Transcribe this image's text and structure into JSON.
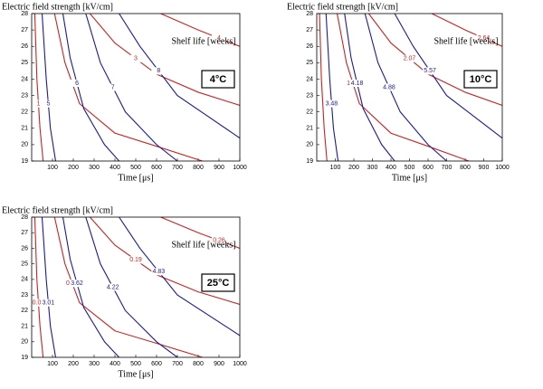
{
  "chart_data": [
    {
      "type": "contour",
      "title": "Electric field strength [kV/cm]",
      "x_label": "Time [μs]",
      "annotation": "Shelf life [weeks]",
      "panel_label": "4°C",
      "xlim": [
        0,
        1000
      ],
      "ylim": [
        19,
        28
      ],
      "xticks": [
        100,
        200,
        300,
        400,
        500,
        600,
        700,
        800,
        900,
        1000
      ],
      "yticks": [
        19,
        20,
        21,
        22,
        23,
        24,
        25,
        26,
        27,
        28
      ],
      "contours": [
        {
          "level": 1,
          "color": "#cc2222",
          "x": [
            15,
            25,
            40,
            55
          ],
          "y": [
            28,
            24,
            21,
            19
          ]
        },
        {
          "level": 2,
          "color": "#cc2222",
          "x": [
            110,
            160,
            230,
            400,
            600,
            820
          ],
          "y": [
            28,
            25,
            22.5,
            20.7,
            19.9,
            19
          ]
        },
        {
          "level": 3,
          "color": "#cc2222",
          "x": [
            280,
            400,
            600,
            800,
            1000
          ],
          "y": [
            28,
            26.2,
            24.3,
            23.2,
            22.4
          ]
        },
        {
          "level": 4,
          "color": "#cc2222",
          "x": [
            620,
            800,
            1000
          ],
          "y": [
            28,
            27,
            26
          ]
        },
        {
          "level": 5,
          "color": "#1a1a9a",
          "x": [
            50,
            70,
            90,
            115
          ],
          "y": [
            28,
            24,
            21,
            19
          ]
        },
        {
          "level": 6,
          "color": "#1a1a9a",
          "x": [
            150,
            185,
            250,
            350,
            420
          ],
          "y": [
            28,
            25.3,
            22.2,
            20,
            19
          ]
        },
        {
          "level": 7,
          "color": "#1a1a9a",
          "x": [
            260,
            330,
            450,
            600,
            700
          ],
          "y": [
            28,
            25,
            22,
            20,
            19
          ]
        },
        {
          "level": 8,
          "color": "#1a1a9a",
          "x": [
            420,
            520,
            700,
            1000
          ],
          "y": [
            28,
            26,
            23,
            20.4
          ]
        }
      ]
    },
    {
      "type": "contour",
      "title": "Electric field strength [kV/cm]",
      "x_label": "Time [μs]",
      "annotation": "Shelf life [weeks]",
      "panel_label": "10°C",
      "xlim": [
        0,
        1000
      ],
      "ylim": [
        19,
        28
      ],
      "xticks": [
        100,
        200,
        300,
        400,
        500,
        600,
        700,
        800,
        900,
        1000
      ],
      "yticks": [
        19,
        20,
        21,
        22,
        23,
        24,
        25,
        26,
        27,
        28
      ],
      "contours": [
        {
          "level": null,
          "color": "#cc2222",
          "x": [
            15,
            25,
            40,
            55
          ],
          "y": [
            28,
            24,
            21,
            19
          ]
        },
        {
          "level": 1.57,
          "color": "#cc2222",
          "x": [
            110,
            160,
            230,
            400,
            600,
            820
          ],
          "y": [
            28,
            25,
            22.5,
            20.7,
            19.9,
            19
          ]
        },
        {
          "level": 2.07,
          "color": "#cc2222",
          "x": [
            280,
            400,
            600,
            800,
            1000
          ],
          "y": [
            28,
            26.2,
            24.3,
            23.2,
            22.4
          ]
        },
        {
          "level": 2.64,
          "color": "#cc2222",
          "x": [
            620,
            800,
            1000
          ],
          "y": [
            28,
            27,
            26
          ]
        },
        {
          "level": 3.48,
          "color": "#1a1a9a",
          "x": [
            50,
            70,
            90,
            115
          ],
          "y": [
            28,
            24,
            21,
            19
          ]
        },
        {
          "level": 4.18,
          "color": "#1a1a9a",
          "x": [
            150,
            185,
            250,
            350,
            420
          ],
          "y": [
            28,
            25.3,
            22.2,
            20,
            19
          ]
        },
        {
          "level": 4.88,
          "color": "#1a1a9a",
          "x": [
            260,
            330,
            450,
            600,
            700
          ],
          "y": [
            28,
            25,
            22,
            20,
            19
          ]
        },
        {
          "level": 5.57,
          "color": "#1a1a9a",
          "x": [
            420,
            520,
            700,
            1000
          ],
          "y": [
            28,
            26,
            23,
            20.4
          ]
        }
      ]
    },
    {
      "type": "contour",
      "title": "Electric field strength [kV/cm]",
      "x_label": "Time [μs]",
      "annotation": "Shelf life [weeks]",
      "panel_label": "25°C",
      "xlim": [
        0,
        1000
      ],
      "ylim": [
        19,
        28
      ],
      "xticks": [
        100,
        200,
        300,
        400,
        500,
        600,
        700,
        800,
        900,
        1000
      ],
      "yticks": [
        19,
        20,
        21,
        22,
        23,
        24,
        25,
        26,
        27,
        28
      ],
      "contours": [
        {
          "level": 0.05,
          "color": "#cc2222",
          "x": [
            15,
            25,
            40,
            55
          ],
          "y": [
            28,
            24,
            21,
            19
          ]
        },
        {
          "level": 0.12,
          "color": "#cc2222",
          "x": [
            110,
            160,
            230,
            400,
            600,
            820
          ],
          "y": [
            28,
            25,
            22.5,
            20.7,
            19.9,
            19
          ]
        },
        {
          "level": 0.19,
          "color": "#cc2222",
          "x": [
            280,
            400,
            600,
            800,
            1000
          ],
          "y": [
            28,
            26.2,
            24.3,
            23.2,
            22.4
          ]
        },
        {
          "level": 0.26,
          "color": "#cc2222",
          "x": [
            620,
            800,
            1000
          ],
          "y": [
            28,
            27,
            26
          ]
        },
        {
          "level": 3.01,
          "color": "#1a1a9a",
          "x": [
            50,
            70,
            90,
            115
          ],
          "y": [
            28,
            24,
            21,
            19
          ]
        },
        {
          "level": 3.62,
          "color": "#1a1a9a",
          "x": [
            150,
            185,
            250,
            350,
            420
          ],
          "y": [
            28,
            25.3,
            22.2,
            20,
            19
          ]
        },
        {
          "level": 4.22,
          "color": "#1a1a9a",
          "x": [
            260,
            330,
            450,
            600,
            700
          ],
          "y": [
            28,
            25,
            22,
            20,
            19
          ]
        },
        {
          "level": 4.83,
          "color": "#1a1a9a",
          "x": [
            420,
            520,
            700,
            1000
          ],
          "y": [
            28,
            26,
            23,
            20.4
          ]
        }
      ]
    }
  ]
}
